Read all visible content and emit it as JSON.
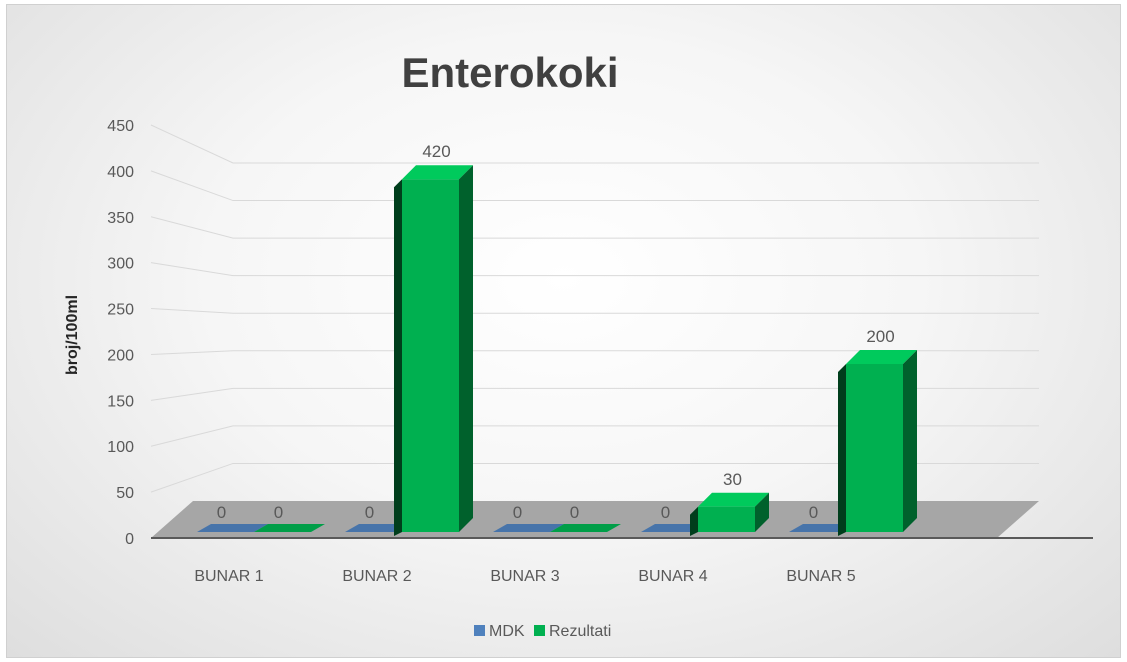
{
  "chart_data": {
    "type": "bar",
    "title": "Enterokoki",
    "ylabel": "broj/100ml",
    "xlabel": "",
    "categories": [
      "BUNAR 1",
      "BUNAR 2",
      "BUNAR 3",
      "BUNAR 4",
      "BUNAR 5"
    ],
    "series": [
      {
        "name": "MDK",
        "values": [
          0,
          0,
          0,
          0,
          0
        ]
      },
      {
        "name": "Rezultati",
        "values": [
          0,
          420,
          0,
          30,
          200
        ]
      }
    ],
    "data_labels": {
      "MDK": [
        "0",
        "0",
        "0",
        "0",
        "0"
      ],
      "Rezultati": [
        "0",
        "420",
        "0",
        "30",
        "200"
      ]
    },
    "ylim": [
      0,
      450
    ],
    "yticks": [
      "0",
      "50",
      "100",
      "150",
      "200",
      "250",
      "300",
      "350",
      "400",
      "450"
    ],
    "grid": true,
    "legend_position": "bottom",
    "style": "3d-clustered-column",
    "colors": {
      "MDK": "#4f81bd",
      "Rezultati": "#00b050",
      "floor": "#a6a6a6",
      "gridline": "#d9d9d9"
    }
  }
}
